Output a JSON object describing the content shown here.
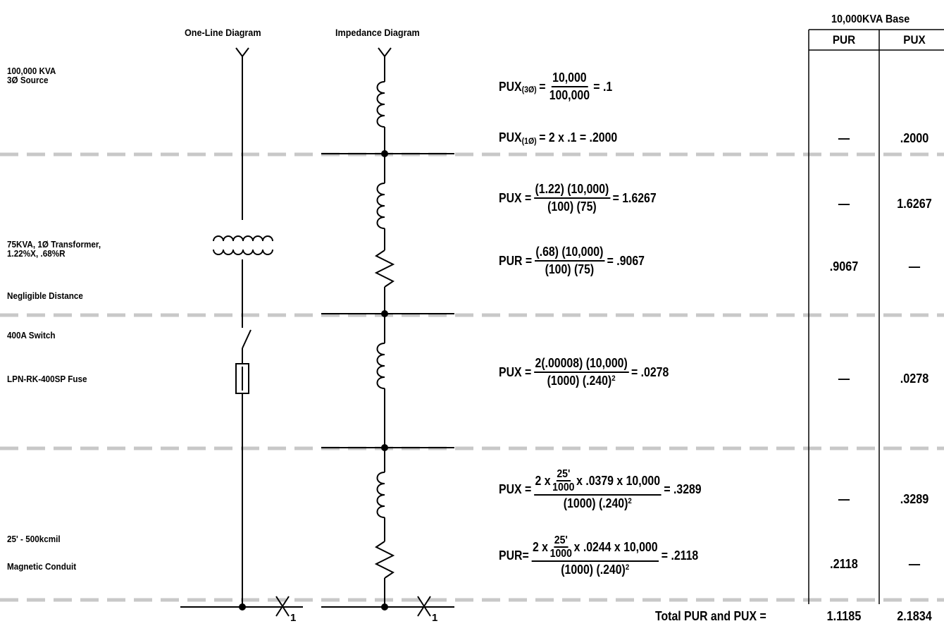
{
  "diagram": {
    "one_line_title": "One-Line Diagram",
    "impedance_title": "Impedance Diagram",
    "fault_label": "X",
    "fault_subscript": "1"
  },
  "labels": {
    "source": [
      "100,000 KVA",
      "3Ø Source"
    ],
    "transformer": [
      "75KVA, 1Ø Transformer,",
      "1.22%X, .68%R"
    ],
    "negligible": "Negligible Distance",
    "switch": "400A Switch",
    "fuse": "LPN-RK-400SP Fuse",
    "conductor": "25' - 500kcmil",
    "conduit": "Magnetic Conduit"
  },
  "table": {
    "base": "10,000KVA Base",
    "col_pur": "PUR",
    "col_pux": "PUX",
    "rows": [
      {
        "pur": "—",
        "pux": ".2000"
      },
      {
        "pur": "—",
        "pux": "1.6267"
      },
      {
        "pur": ".9067",
        "pux": "—"
      },
      {
        "pur": "—",
        "pux": ".0278"
      },
      {
        "pur": "—",
        "pux": ".3289"
      },
      {
        "pur": ".2118",
        "pux": "—"
      }
    ],
    "total_label": "Total PUR and PUX =",
    "total_pur": "1.1185",
    "total_pux": "2.1834"
  },
  "equations": {
    "eq1": {
      "lhs": "PUX",
      "sub": "(3Ø)",
      "eq": "=",
      "num": "10,000",
      "den": "100,000",
      "result": "= .1"
    },
    "eq2": {
      "lhs": "PUX",
      "sub": "(1Ø)",
      "rest": "= 2 x .1 = .2000"
    },
    "eq3": {
      "lhs": "PUX =",
      "num": "(1.22) (10,000)",
      "den": "(100) (75)",
      "result": "= 1.6267"
    },
    "eq4": {
      "lhs": "PUR =",
      "num": "(.68) (10,000)",
      "den": "(100) (75)",
      "result": "= .9067"
    },
    "eq5": {
      "lhs": "PUX =",
      "num": "2(.00008) (10,000)",
      "den_a": "(1000) (.240)",
      "den_sup": "2",
      "result": "= .0278"
    },
    "eq6": {
      "lhs": "PUX =",
      "pre": "2 x",
      "fn": "25'",
      "fd": "1000",
      "post": "x .0379 x 10,000",
      "den_a": "(1000) (.240)",
      "den_sup": "2",
      "result": "= .3289"
    },
    "eq7": {
      "lhs": "PUR=",
      "pre": "2 x",
      "fn": "25'",
      "fd": "1000",
      "post": "x .0244 x 10,000",
      "den_a": "(1000) (.240)",
      "den_sup": "2",
      "result": "= .2118"
    }
  }
}
